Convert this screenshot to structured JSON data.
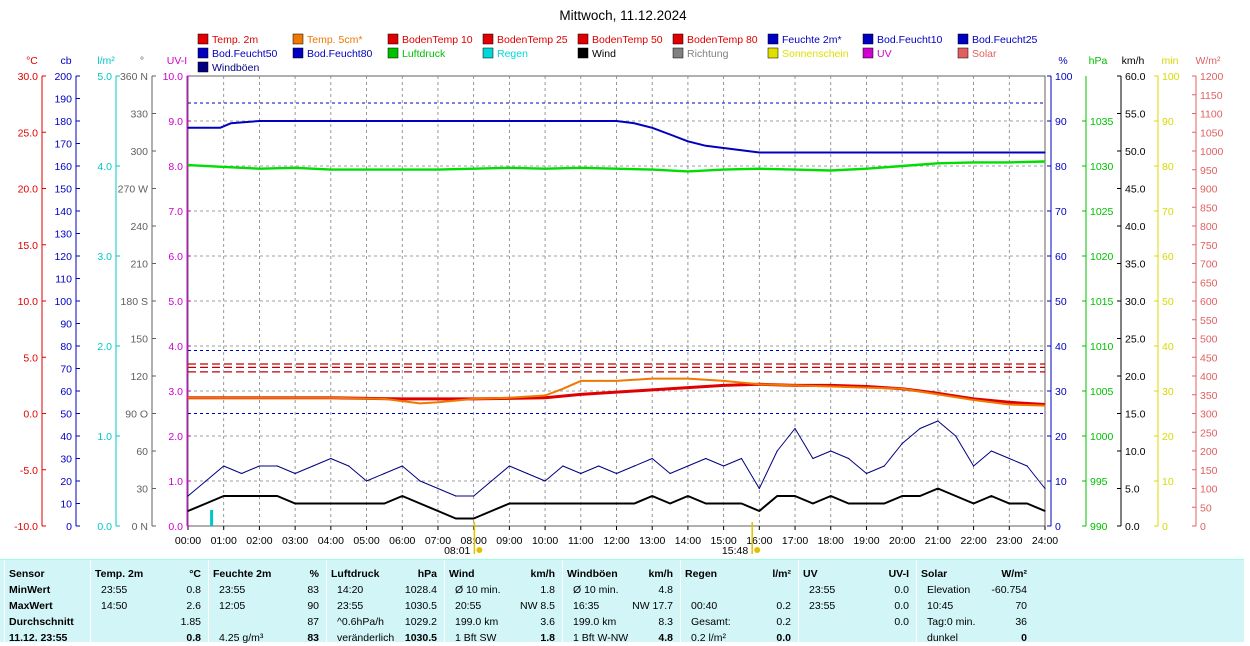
{
  "title": "Mittwoch, 11.12.2024",
  "legend": [
    {
      "label": "Temp. 2m",
      "color": "#e00000"
    },
    {
      "label": "Temp. 5cm*",
      "color": "#f07800"
    },
    {
      "label": "BodenTemp 10",
      "color": "#e00000"
    },
    {
      "label": "BodenTemp 25",
      "color": "#e00000"
    },
    {
      "label": "BodenTemp 50",
      "color": "#e00000"
    },
    {
      "label": "BodenTemp 80",
      "color": "#e00000"
    },
    {
      "label": "Feuchte 2m*",
      "color": "#0000c0"
    },
    {
      "label": "Bod.Feucht10",
      "color": "#0000c0"
    },
    {
      "label": "Bod.Feucht25",
      "color": "#0000c0"
    },
    {
      "label": "Bod.Feucht50",
      "color": "#0000c0"
    },
    {
      "label": "Bod.Feucht80",
      "color": "#0000c0"
    },
    {
      "label": "Luftdruck",
      "color": "#00c000"
    },
    {
      "label": "Regen",
      "color": "#00d8d8"
    },
    {
      "label": "Wind",
      "color": "#000000"
    },
    {
      "label": "Richtung",
      "color": "#808080"
    },
    {
      "label": "Sonnenschein",
      "color": "#e0e000"
    },
    {
      "label": "UV",
      "color": "#d000d0"
    },
    {
      "label": "Solar",
      "color": "#e06060"
    },
    {
      "label": "Windböen",
      "color": "#000080"
    }
  ],
  "axes_units": {
    "temp": "°C",
    "cloud": "cb",
    "rain": "l/m²",
    "dir": "°",
    "uv": "UV-I",
    "hum": "%",
    "press": "hPa",
    "wind": "km/h",
    "sun": "min",
    "solar": "W/m²"
  },
  "sun_markers": {
    "sunrise": "08:01",
    "sunset": "15:48"
  },
  "colors": {
    "temp": "#e00000",
    "temp5": "#f07800",
    "hum": "#0000c0",
    "press": "#00dd00",
    "wind": "#000000",
    "gust": "#000080",
    "rain": "#00c8c8",
    "sun": "#e0e000",
    "uv": "#d000d0",
    "solar": "#e06060",
    "grid": "#808080"
  },
  "chart_data": {
    "type": "line",
    "title": "Mittwoch, 11.12.2024",
    "x_ticks": [
      "00:00",
      "01:00",
      "02:00",
      "03:00",
      "04:00",
      "05:00",
      "06:00",
      "07:00",
      "08:00",
      "09:00",
      "10:00",
      "11:00",
      "12:00",
      "13:00",
      "14:00",
      "15:00",
      "16:00",
      "17:00",
      "18:00",
      "19:00",
      "20:00",
      "21:00",
      "22:00",
      "23:00",
      "24:00"
    ],
    "x_range_hours": [
      0,
      24
    ],
    "axes": {
      "temp": {
        "label": "°C",
        "range": [
          -10,
          30
        ],
        "ticks": [
          "30.0",
          "25.0",
          "20.0",
          "15.0",
          "10.0",
          "5.0",
          "0.0",
          "-5.0",
          "-10.0"
        ]
      },
      "cloud": {
        "label": "cb",
        "range": [
          0,
          200
        ],
        "ticks": [
          "200",
          "190",
          "180",
          "170",
          "160",
          "150",
          "140",
          "130",
          "120",
          "110",
          "100",
          "90",
          "80",
          "70",
          "60",
          "50",
          "40",
          "30",
          "20",
          "10",
          "0"
        ]
      },
      "rain": {
        "label": "l/m²",
        "range": [
          0,
          5
        ],
        "ticks": [
          "5.0",
          "4.0",
          "3.0",
          "2.0",
          "1.0",
          "0.0"
        ]
      },
      "direction": {
        "label": "°",
        "range": [
          0,
          360
        ],
        "ticks": [
          "360 N",
          "330",
          "300",
          "270 W",
          "240",
          "210",
          "180 S",
          "150",
          "120",
          "90 O",
          "60",
          "30",
          "0 N"
        ]
      },
      "uv": {
        "label": "UV-I",
        "range": [
          0,
          10
        ],
        "ticks": [
          "10.0",
          "9.0",
          "8.0",
          "7.0",
          "6.0",
          "5.0",
          "4.0",
          "3.0",
          "2.0",
          "1.0",
          "0.0"
        ]
      },
      "humidity": {
        "label": "%",
        "range": [
          0,
          100
        ],
        "ticks": [
          "100",
          "90",
          "80",
          "70",
          "60",
          "50",
          "40",
          "30",
          "20",
          "10",
          "0"
        ]
      },
      "pressure": {
        "label": "hPa",
        "range": [
          990,
          1040
        ],
        "ticks": [
          "1035",
          "1030",
          "1025",
          "1020",
          "1015",
          "1010",
          "1005",
          "1000",
          "995",
          "990"
        ]
      },
      "wind": {
        "label": "km/h",
        "range": [
          0,
          60
        ],
        "ticks": [
          "60.0",
          "55.0",
          "50.0",
          "45.0",
          "40.0",
          "35.0",
          "30.0",
          "25.0",
          "20.0",
          "15.0",
          "10.0",
          "5.0",
          "0.0"
        ]
      },
      "sunshine": {
        "label": "min",
        "range": [
          0,
          100
        ],
        "ticks": [
          "100",
          "90",
          "80",
          "70",
          "60",
          "50",
          "40",
          "30",
          "20",
          "10",
          "0"
        ]
      },
      "solar": {
        "label": "W/m²",
        "range": [
          0,
          1200
        ],
        "ticks": [
          "1200",
          "1150",
          "1100",
          "1050",
          "1000",
          "950",
          "900",
          "850",
          "800",
          "750",
          "700",
          "650",
          "600",
          "550",
          "500",
          "450",
          "400",
          "350",
          "300",
          "250",
          "200",
          "150",
          "100",
          "50",
          "0"
        ]
      }
    },
    "series": [
      {
        "name": "Feuchte 2m*",
        "axis": "humidity",
        "x": [
          0,
          0.9,
          1.2,
          2,
          6,
          10,
          12,
          12.5,
          13,
          13.5,
          14,
          14.5,
          15,
          15.5,
          16,
          18,
          20,
          22,
          24
        ],
        "values": [
          88.5,
          88.5,
          89.5,
          90,
          90,
          90,
          90,
          89.5,
          88.5,
          87,
          85.5,
          84.5,
          84,
          83.5,
          83,
          83,
          83,
          83,
          83
        ]
      },
      {
        "name": "Luftdruck",
        "axis": "pressure",
        "x": [
          0,
          1,
          2,
          3,
          4,
          5,
          6,
          7,
          8,
          9,
          10,
          11,
          12,
          13,
          14,
          15,
          16,
          17,
          18,
          19,
          20,
          21,
          22,
          23,
          24
        ],
        "values": [
          1030.1,
          1029.9,
          1029.7,
          1029.8,
          1029.6,
          1029.6,
          1029.6,
          1029.6,
          1029.7,
          1029.8,
          1029.7,
          1029.8,
          1029.7,
          1029.6,
          1029.4,
          1029.6,
          1029.7,
          1029.6,
          1029.5,
          1029.7,
          1030.0,
          1030.3,
          1030.4,
          1030.4,
          1030.5
        ]
      },
      {
        "name": "Temp. 2m",
        "axis": "temp",
        "x": [
          0,
          2,
          4,
          6,
          8,
          10,
          11,
          12,
          13,
          14,
          15,
          16,
          17,
          18,
          19,
          20,
          21,
          22,
          23,
          24
        ],
        "values": [
          1.4,
          1.4,
          1.4,
          1.3,
          1.3,
          1.4,
          1.7,
          1.9,
          2.1,
          2.3,
          2.5,
          2.6,
          2.5,
          2.5,
          2.4,
          2.2,
          1.8,
          1.3,
          1.0,
          0.8
        ]
      },
      {
        "name": "Temp. 5cm*",
        "axis": "temp",
        "x": [
          0,
          4,
          5.5,
          6.5,
          7,
          8,
          9,
          10,
          10.5,
          11,
          12,
          13,
          14,
          15,
          16,
          17,
          18,
          19,
          20,
          21,
          22,
          23,
          24
        ],
        "values": [
          1.4,
          1.4,
          1.3,
          0.9,
          1.0,
          1.3,
          1.4,
          1.6,
          2.2,
          2.9,
          2.9,
          3.1,
          3.1,
          2.9,
          2.6,
          2.5,
          2.4,
          2.3,
          2.2,
          1.7,
          1.2,
          0.8,
          0.7
        ]
      },
      {
        "name": "Windböen",
        "axis": "wind",
        "x": [
          0,
          0.5,
          1,
          1.5,
          2,
          2.5,
          3,
          3.5,
          4,
          4.5,
          5,
          5.5,
          6,
          6.5,
          7,
          7.5,
          8,
          8.5,
          9,
          9.5,
          10,
          10.5,
          11,
          11.5,
          12,
          12.5,
          13,
          13.5,
          14,
          14.5,
          15,
          15.5,
          16,
          16.5,
          17,
          17.5,
          18,
          18.5,
          19,
          19.5,
          20,
          20.5,
          21,
          21.5,
          22,
          22.5,
          23,
          23.5,
          24
        ],
        "values": [
          4,
          6,
          8,
          7,
          8,
          8,
          7,
          8,
          9,
          8,
          6,
          7,
          8,
          6,
          5,
          4,
          4,
          6,
          8,
          7,
          6,
          8,
          7,
          8,
          7,
          8,
          9,
          7,
          8,
          9,
          8,
          9,
          5,
          10,
          13,
          9,
          10,
          9,
          7,
          8,
          11,
          13,
          14,
          12,
          8,
          10,
          9,
          8,
          5
        ]
      },
      {
        "name": "Wind",
        "axis": "wind",
        "x": [
          0,
          0.5,
          1,
          1.5,
          2,
          2.5,
          3,
          3.5,
          4,
          4.5,
          5,
          5.5,
          6,
          6.5,
          7,
          7.5,
          8,
          8.5,
          9,
          9.5,
          10,
          10.5,
          11,
          11.5,
          12,
          12.5,
          13,
          13.5,
          14,
          14.5,
          15,
          15.5,
          16,
          16.5,
          17,
          17.5,
          18,
          18.5,
          19,
          19.5,
          20,
          20.5,
          21,
          21.5,
          22,
          22.5,
          23,
          23.5,
          24
        ],
        "values": [
          2,
          3,
          4,
          4,
          4,
          4,
          3,
          3,
          3,
          3,
          3,
          3,
          4,
          3,
          2,
          1,
          1,
          2,
          3,
          3,
          3,
          3,
          3,
          3,
          3,
          3,
          4,
          3,
          4,
          3,
          3,
          3,
          2,
          4,
          4,
          3,
          4,
          3,
          3,
          3,
          4,
          4,
          5,
          4,
          3,
          4,
          3,
          3,
          2
        ]
      }
    ]
  },
  "stats": {
    "columns": [
      {
        "header": "Sensor",
        "rows": [
          "MinWert",
          "MaxWert",
          "Durchschnitt",
          "11.12. 23:55"
        ]
      },
      {
        "header": "Temp. 2m",
        "unit": "°C",
        "rows": [
          [
            "23:55",
            "0.8"
          ],
          [
            "14:50",
            "2.6"
          ],
          [
            "",
            "1.85"
          ],
          [
            "",
            "0.8"
          ]
        ]
      },
      {
        "header": "Feuchte 2m",
        "unit": "%",
        "rows": [
          [
            "23:55",
            "83"
          ],
          [
            "12:05",
            "90"
          ],
          [
            "",
            "87"
          ],
          [
            "4.25 g/m³",
            "83"
          ]
        ]
      },
      {
        "header": "Luftdruck",
        "unit": "hPa",
        "rows": [
          [
            "14:20",
            "1028.4"
          ],
          [
            "23:55",
            "1030.5"
          ],
          [
            "^0.6hPa/h",
            "1029.2"
          ],
          [
            "veränderlich",
            "1030.5"
          ]
        ]
      },
      {
        "header": "Wind",
        "unit": "km/h",
        "rows": [
          [
            "Ø 10 min.",
            "1.8"
          ],
          [
            "20:55",
            "NW 8.5"
          ],
          [
            "199.0 km",
            "3.6"
          ],
          [
            "1 Bft SW",
            "1.8"
          ]
        ]
      },
      {
        "header": "Windböen",
        "unit": "km/h",
        "rows": [
          [
            "Ø 10 min.",
            "4.8"
          ],
          [
            "16:35",
            "NW 17.7"
          ],
          [
            "199.0 km",
            "8.3"
          ],
          [
            "1 Bft W-NW",
            "4.8"
          ]
        ]
      },
      {
        "header": "Regen",
        "unit": "l/m²",
        "rows": [
          [
            "",
            ""
          ],
          [
            "00:40",
            "0.2"
          ],
          [
            "Gesamt:",
            "0.2"
          ],
          [
            "0.2 l/m²",
            "0.0"
          ]
        ]
      },
      {
        "header": "UV",
        "unit": "UV-I",
        "rows": [
          [
            "23:55",
            "0.0"
          ],
          [
            "23:55",
            "0.0"
          ],
          [
            "",
            "0.0"
          ],
          [
            "",
            ""
          ]
        ]
      },
      {
        "header": "Solar",
        "unit": "W/m²",
        "rows": [
          [
            "Elevation",
            "-60.754"
          ],
          [
            "10:45",
            "70"
          ],
          [
            "Tag:0 min.",
            "36"
          ],
          [
            "dunkel",
            "0"
          ]
        ]
      }
    ]
  }
}
